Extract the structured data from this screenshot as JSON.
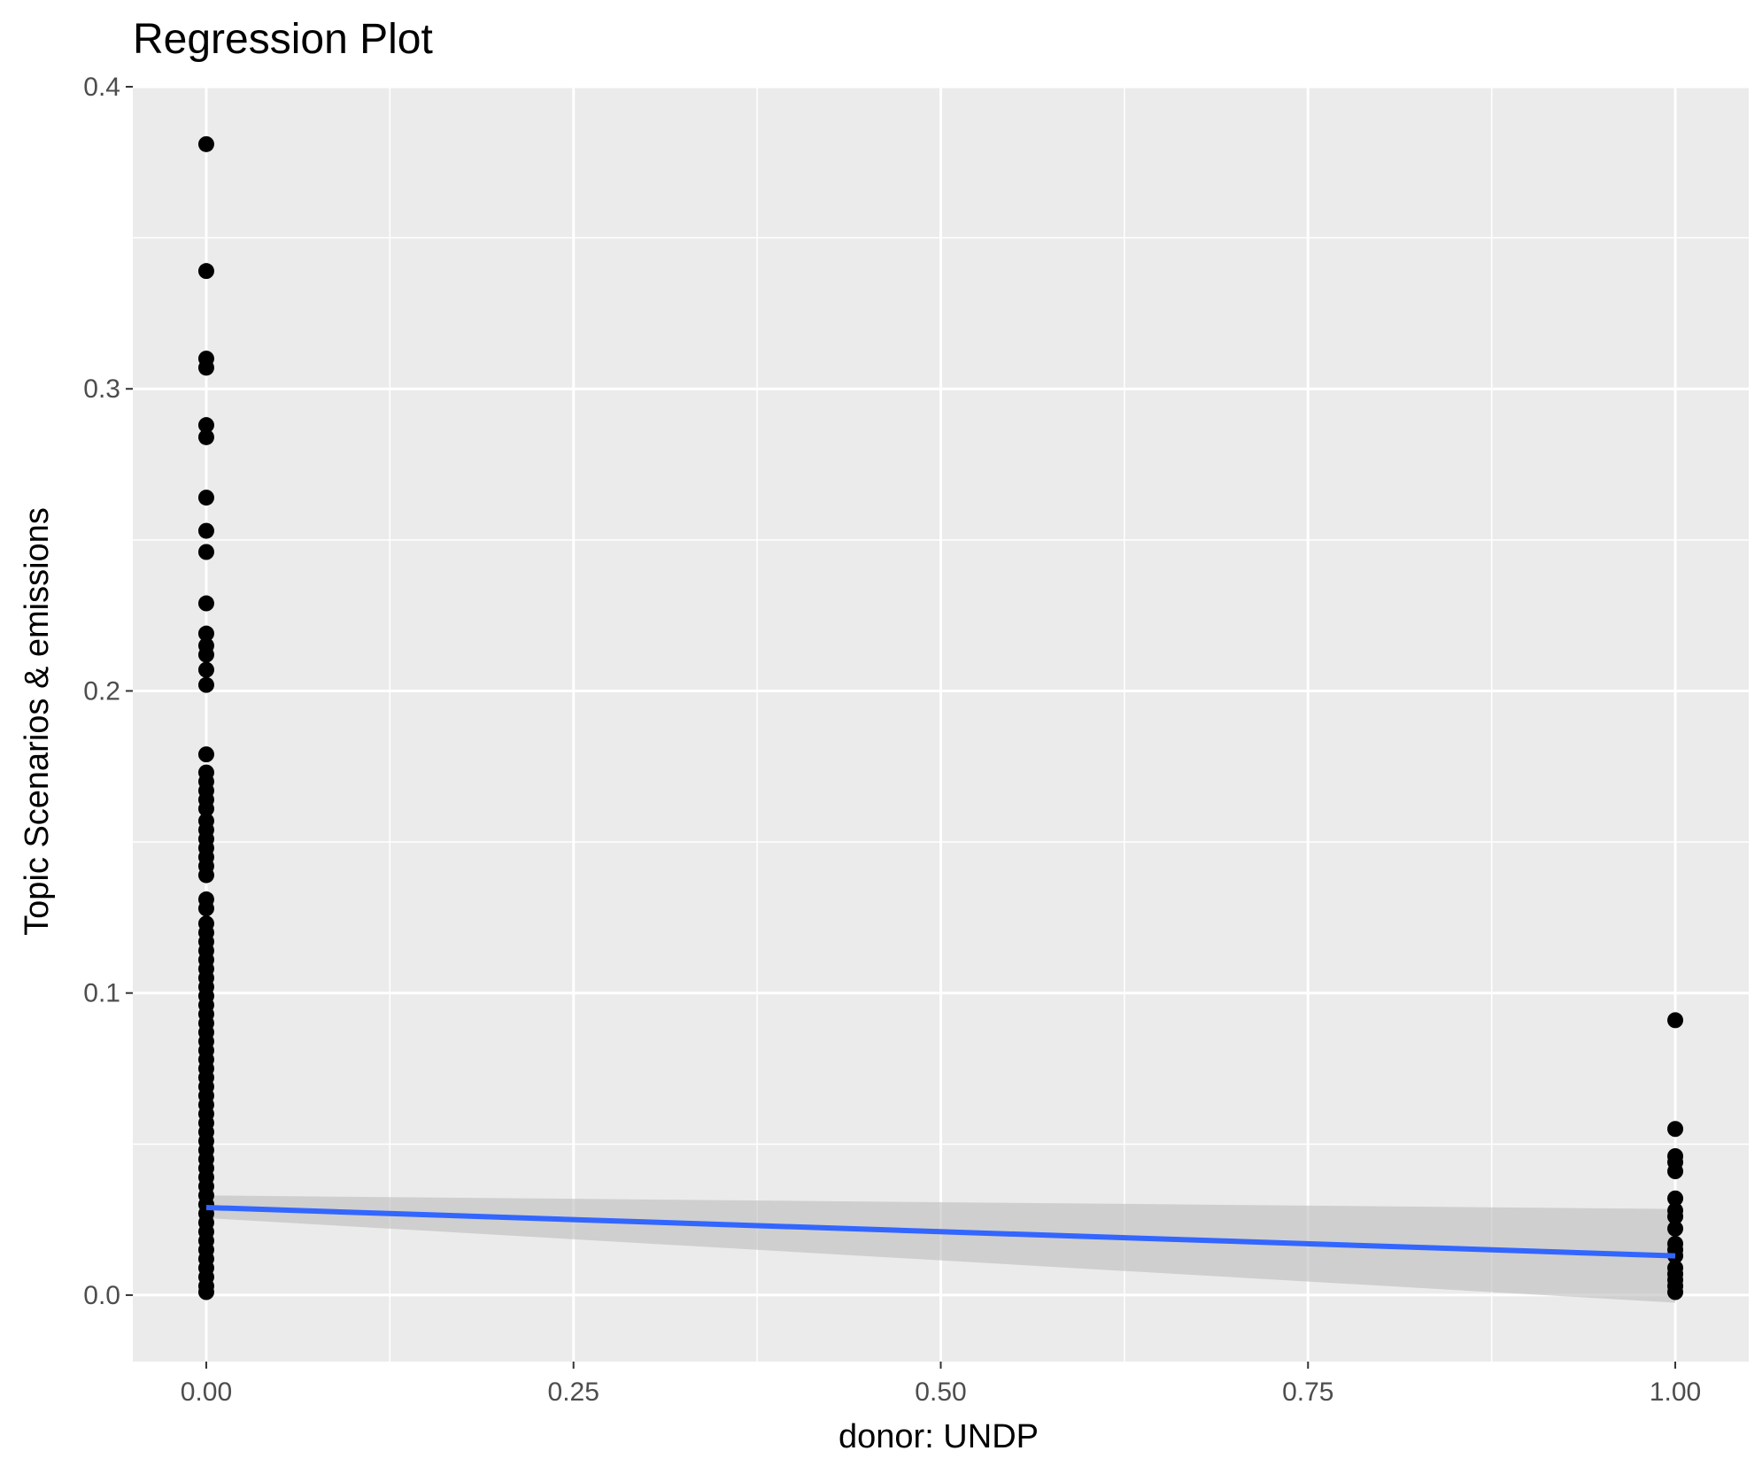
{
  "chart_data": {
    "type": "scatter",
    "title": "Regression Plot",
    "xlabel": "donor: UNDP",
    "ylabel": "Topic Scenarios & emissions",
    "xlim": [
      -0.05,
      1.05
    ],
    "ylim": [
      -0.022,
      0.4
    ],
    "x_ticks": [
      0.0,
      0.25,
      0.5,
      0.75,
      1.0
    ],
    "x_tick_labels": [
      "0.00",
      "0.25",
      "0.50",
      "0.75",
      "1.00"
    ],
    "y_ticks": [
      0.0,
      0.1,
      0.2,
      0.3,
      0.4
    ],
    "y_tick_labels": [
      "0.0",
      "0.1",
      "0.2",
      "0.3",
      "0.4"
    ],
    "grid": true,
    "colors": {
      "panel": "#ebebeb",
      "grid": "#ffffff",
      "points": "#000000",
      "fit_line": "#3366ff",
      "ribbon": "#bdbdbd"
    },
    "series": [
      {
        "type": "scatter",
        "points": [
          [
            0,
            0.381
          ],
          [
            0,
            0.339
          ],
          [
            0,
            0.31
          ],
          [
            0,
            0.307
          ],
          [
            0,
            0.288
          ],
          [
            0,
            0.284
          ],
          [
            0,
            0.264
          ],
          [
            0,
            0.253
          ],
          [
            0,
            0.246
          ],
          [
            0,
            0.229
          ],
          [
            0,
            0.219
          ],
          [
            0,
            0.215
          ],
          [
            0,
            0.212
          ],
          [
            0,
            0.207
          ],
          [
            0,
            0.202
          ],
          [
            0,
            0.179
          ],
          [
            0,
            0.173
          ],
          [
            0,
            0.17
          ],
          [
            0,
            0.167
          ],
          [
            0,
            0.164
          ],
          [
            0,
            0.161
          ],
          [
            0,
            0.157
          ],
          [
            0,
            0.154
          ],
          [
            0,
            0.151
          ],
          [
            0,
            0.148
          ],
          [
            0,
            0.145
          ],
          [
            0,
            0.142
          ],
          [
            0,
            0.139
          ],
          [
            0,
            0.131
          ],
          [
            0,
            0.128
          ],
          [
            0,
            0.123
          ],
          [
            0,
            0.12
          ],
          [
            0,
            0.117
          ],
          [
            0,
            0.114
          ],
          [
            0,
            0.111
          ],
          [
            0,
            0.108
          ],
          [
            0,
            0.105
          ],
          [
            0,
            0.102
          ],
          [
            0,
            0.099
          ],
          [
            0,
            0.096
          ],
          [
            0,
            0.093
          ],
          [
            0,
            0.09
          ],
          [
            0,
            0.087
          ],
          [
            0,
            0.084
          ],
          [
            0,
            0.081
          ],
          [
            0,
            0.078
          ],
          [
            0,
            0.075
          ],
          [
            0,
            0.072
          ],
          [
            0,
            0.069
          ],
          [
            0,
            0.066
          ],
          [
            0,
            0.063
          ],
          [
            0,
            0.06
          ],
          [
            0,
            0.057
          ],
          [
            0,
            0.054
          ],
          [
            0,
            0.051
          ],
          [
            0,
            0.048
          ],
          [
            0,
            0.045
          ],
          [
            0,
            0.042
          ],
          [
            0,
            0.039
          ],
          [
            0,
            0.036
          ],
          [
            0,
            0.033
          ],
          [
            0,
            0.03
          ],
          [
            0,
            0.027
          ],
          [
            0,
            0.024
          ],
          [
            0,
            0.021
          ],
          [
            0,
            0.018
          ],
          [
            0,
            0.015
          ],
          [
            0,
            0.012
          ],
          [
            0,
            0.009
          ],
          [
            0,
            0.006
          ],
          [
            0,
            0.003
          ],
          [
            0,
            0.001
          ],
          [
            1,
            0.091
          ],
          [
            1,
            0.055
          ],
          [
            1,
            0.046
          ],
          [
            1,
            0.044
          ],
          [
            1,
            0.041
          ],
          [
            1,
            0.032
          ],
          [
            1,
            0.028
          ],
          [
            1,
            0.026
          ],
          [
            1,
            0.022
          ],
          [
            1,
            0.017
          ],
          [
            1,
            0.015
          ],
          [
            1,
            0.013
          ],
          [
            1,
            0.009
          ],
          [
            1,
            0.007
          ],
          [
            1,
            0.005
          ],
          [
            1,
            0.003
          ],
          [
            1,
            0.001
          ]
        ]
      },
      {
        "type": "line",
        "x": [
          0,
          1
        ],
        "y": [
          0.029,
          0.013
        ]
      },
      {
        "type": "ribbon",
        "x": [
          0,
          1
        ],
        "ymin": [
          0.0255,
          -0.0025
        ],
        "ymax": [
          0.033,
          0.0285
        ]
      }
    ]
  }
}
